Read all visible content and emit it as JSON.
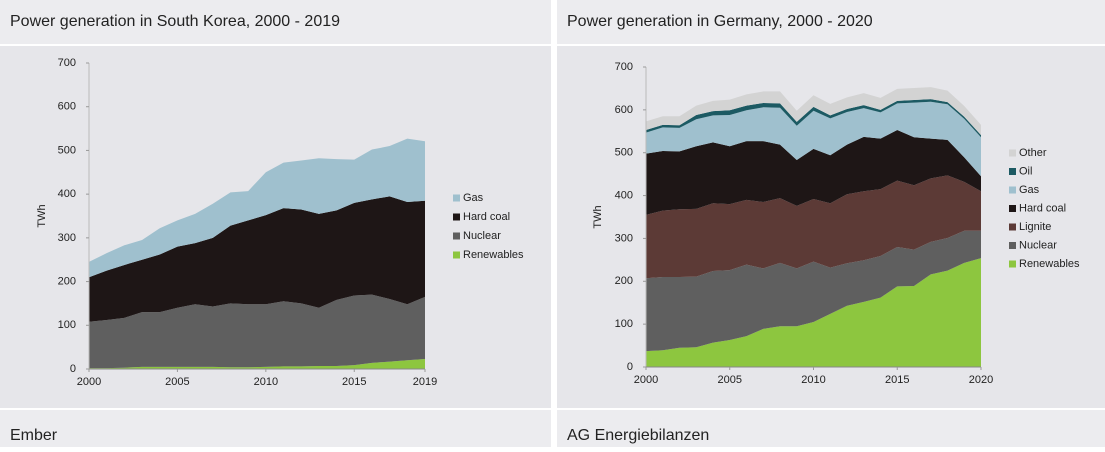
{
  "chart_data": [
    {
      "type": "stacked-area",
      "title": "Power generation in South Korea, 2000 - 2019",
      "ylabel": "TWh",
      "source": "Ember",
      "x": [
        2000,
        2001,
        2002,
        2003,
        2004,
        2005,
        2006,
        2007,
        2008,
        2009,
        2010,
        2011,
        2012,
        2013,
        2014,
        2015,
        2016,
        2017,
        2018,
        2019
      ],
      "xlim": [
        2000,
        2019
      ],
      "xticks": [
        2000,
        2005,
        2010,
        2015,
        2019
      ],
      "ylim": [
        0,
        700
      ],
      "yticks": [
        0,
        100,
        200,
        300,
        400,
        500,
        600,
        700
      ],
      "series": [
        {
          "name": "Renewables",
          "color": "#8dc63f",
          "values": [
            2,
            2,
            3,
            5,
            5,
            5,
            5,
            5,
            4,
            4,
            5,
            6,
            6,
            7,
            7,
            9,
            14,
            17,
            20,
            23
          ]
        },
        {
          "name": "Nuclear",
          "color": "#5f5f5f",
          "values": [
            106,
            110,
            114,
            125,
            125,
            135,
            143,
            138,
            146,
            144,
            143,
            149,
            144,
            133,
            151,
            159,
            156,
            143,
            128,
            142
          ]
        },
        {
          "name": "Hard coal",
          "color": "#1e1616",
          "values": [
            102,
            113,
            121,
            120,
            132,
            140,
            140,
            157,
            178,
            192,
            204,
            213,
            215,
            215,
            205,
            212,
            218,
            235,
            234,
            220
          ]
        },
        {
          "name": "Gas",
          "color": "#9fc0ce",
          "values": [
            35,
            40,
            45,
            45,
            60,
            60,
            67,
            78,
            76,
            67,
            98,
            104,
            112,
            127,
            117,
            99,
            114,
            115,
            145,
            136
          ]
        }
      ]
    },
    {
      "type": "stacked-area",
      "title": "Power generation in Germany, 2000 - 2020",
      "ylabel": "TWh",
      "source": "AG Energiebilanzen",
      "x": [
        2000,
        2001,
        2002,
        2003,
        2004,
        2005,
        2006,
        2007,
        2008,
        2009,
        2010,
        2011,
        2012,
        2013,
        2014,
        2015,
        2016,
        2017,
        2018,
        2019,
        2020
      ],
      "xlim": [
        2000,
        2020
      ],
      "xticks": [
        2000,
        2005,
        2010,
        2015,
        2020
      ],
      "ylim": [
        0,
        700
      ],
      "yticks": [
        0,
        100,
        200,
        300,
        400,
        500,
        600,
        700
      ],
      "series": [
        {
          "name": "Renewables",
          "color": "#8dc63f",
          "values": [
            37,
            39,
            45,
            46,
            57,
            63,
            72,
            89,
            95,
            95,
            105,
            124,
            143,
            152,
            162,
            188,
            189,
            216,
            225,
            243,
            254
          ]
        },
        {
          "name": "Nuclear",
          "color": "#5f5f5f",
          "values": [
            170,
            171,
            165,
            165,
            167,
            163,
            167,
            141,
            148,
            135,
            141,
            108,
            99,
            97,
            97,
            92,
            85,
            76,
            76,
            75,
            64
          ]
        },
        {
          "name": "Lignite",
          "color": "#5c3a36",
          "values": [
            148,
            155,
            158,
            158,
            158,
            154,
            151,
            155,
            151,
            146,
            146,
            150,
            161,
            161,
            156,
            155,
            150,
            148,
            146,
            114,
            92
          ]
        },
        {
          "name": "Hard coal",
          "color": "#1e1616",
          "values": [
            143,
            139,
            135,
            146,
            142,
            135,
            137,
            142,
            125,
            107,
            117,
            112,
            116,
            127,
            118,
            118,
            112,
            93,
            83,
            57,
            35
          ]
        },
        {
          "name": "Gas",
          "color": "#9fc0ce",
          "values": [
            49,
            55,
            55,
            63,
            63,
            73,
            72,
            79,
            86,
            80,
            89,
            86,
            76,
            67,
            61,
            62,
            81,
            86,
            83,
            90,
            91
          ]
        },
        {
          "name": "Oil",
          "color": "#1c5a63",
          "values": [
            6,
            6,
            6,
            10,
            10,
            11,
            11,
            10,
            10,
            9,
            9,
            7,
            7,
            7,
            6,
            6,
            6,
            6,
            5,
            5,
            5
          ]
        },
        {
          "name": "Other",
          "color": "#d3d3d3",
          "values": [
            20,
            20,
            21,
            22,
            24,
            25,
            26,
            27,
            28,
            26,
            27,
            27,
            27,
            28,
            28,
            28,
            28,
            28,
            27,
            25,
            24
          ]
        }
      ]
    }
  ]
}
